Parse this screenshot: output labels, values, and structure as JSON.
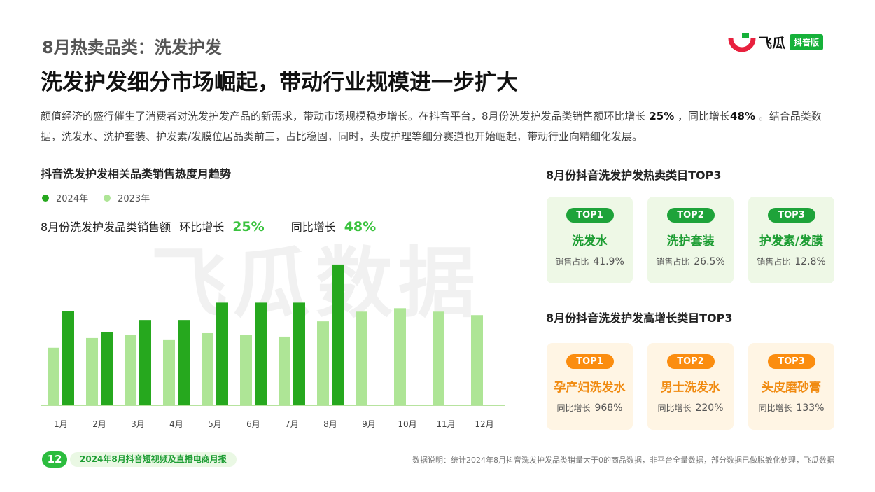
{
  "header": {
    "section_label": "8月热卖品类：洗发护发",
    "headline": "洗发护发细分市场崛起，带动行业规模进一步扩大"
  },
  "logo": {
    "name": "飞瓜",
    "badge": "抖音版",
    "colors": {
      "red": "#e8213e",
      "green": "#16b13a"
    }
  },
  "intro": {
    "part1": "颜值经济的盛行催生了消费者对洗发护发产品的新需求，带动市场规模稳步增长。在抖音平台，8月份洗发护发品类销售额环比增长 ",
    "mom": "25%",
    "part2": " ，同比增长",
    "yoy": "48%",
    "part3": " 。结合品类数据，洗发水、洗护套装、护发素/发膜位居品类前三，占比稳固，同时，头皮护理等细分赛道也开始崛起，带动行业向精细化发展。"
  },
  "chart_panel": {
    "title": "抖音洗发护发相关品类销售热度月趋势",
    "kpi_label": "8月份洗发护发品类销售额",
    "mom_label": "环比增长",
    "mom_value": "25%",
    "yoy_label": "同比增长",
    "yoy_value": "48%",
    "watermark": "飞瓜数据"
  },
  "chart_data": {
    "type": "bar",
    "categories": [
      "1月",
      "2月",
      "3月",
      "4月",
      "5月",
      "6月",
      "7月",
      "8月",
      "9月",
      "10月",
      "11月",
      "12月"
    ],
    "series": [
      {
        "name": "2024年",
        "color": "#26a81e",
        "values": [
          135,
          105,
          122,
          122,
          147,
          147,
          147,
          202,
          null,
          null,
          null,
          null
        ]
      },
      {
        "name": "2023年",
        "color": "#aee596",
        "values": [
          82,
          96,
          100,
          93,
          103,
          100,
          98,
          120,
          134,
          139,
          134,
          129
        ]
      }
    ],
    "ylim": [
      0,
      210
    ],
    "grid": false,
    "legend_position": "top-left"
  },
  "hot_top3": {
    "title": "8月份抖音洗发护发热卖类目TOP3",
    "stat_label": "销售占比",
    "items": [
      {
        "rank": "TOP1",
        "name": "洗发水",
        "value": "41.9%"
      },
      {
        "rank": "TOP2",
        "name": "洗护套装",
        "value": "26.5%"
      },
      {
        "rank": "TOP3",
        "name": "护发素/发膜",
        "value": "12.8%"
      }
    ]
  },
  "growth_top3": {
    "title": "8月份抖音洗发护发高增长类目TOP3",
    "stat_label": "同比增长",
    "items": [
      {
        "rank": "TOP1",
        "name": "孕产妇洗发水",
        "value": "968%"
      },
      {
        "rank": "TOP2",
        "name": "男士洗发水",
        "value": "220%"
      },
      {
        "rank": "TOP3",
        "name": "头皮磨砂膏",
        "value": "133%"
      }
    ]
  },
  "footer": {
    "page_number": "12",
    "report_title": "2024年8月抖音短视频及直播电商月报",
    "note": "数据说明：统计2024年8月抖音洗发护发品类销量大于0的商品数据，非平台全量数据，部分数据已做脱敏化处理，飞瓜数据"
  }
}
